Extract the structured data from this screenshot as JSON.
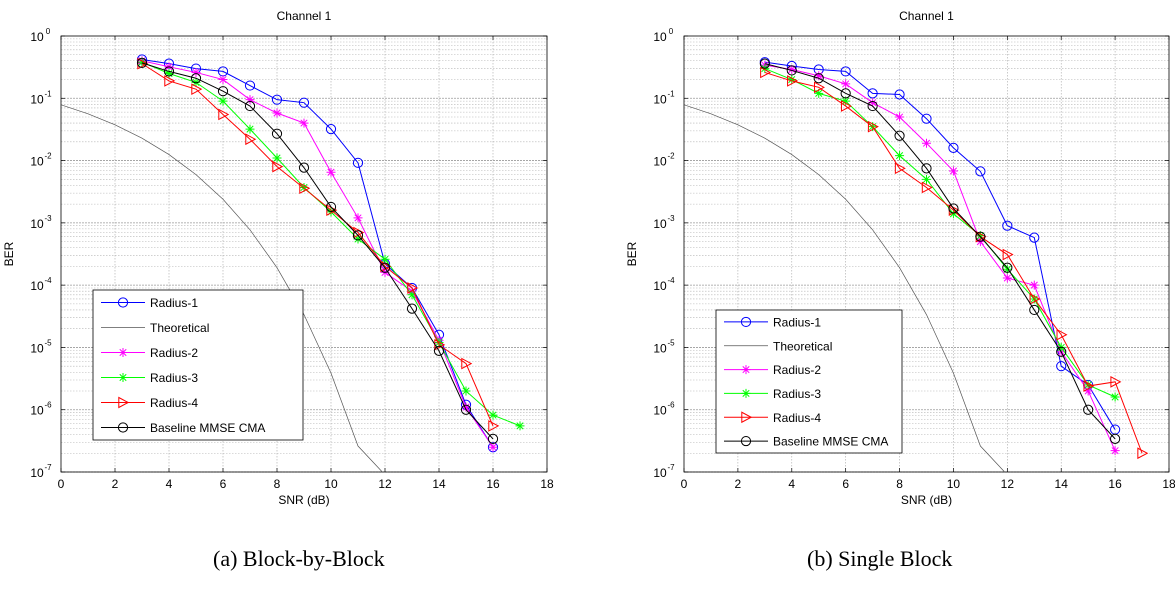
{
  "chart_data": [
    {
      "type": "line",
      "title": "Channel 1",
      "xlabel": "SNR (dB)",
      "ylabel": "BER",
      "xlim": [
        0,
        18
      ],
      "ylim": [
        1e-07,
        1
      ],
      "yscale": "log",
      "xticks": [
        "0",
        "2",
        "4",
        "6",
        "8",
        "10",
        "12",
        "14",
        "16",
        "18"
      ],
      "grid": true,
      "legend_position": "lower-left",
      "caption": "(a)   Block-by-Block",
      "series": [
        {
          "name": "Radius-1",
          "color": "#0000ff",
          "marker": "circle",
          "x": [
            3,
            4,
            5,
            6,
            7,
            8,
            9,
            10,
            11,
            12,
            13,
            14,
            15,
            16
          ],
          "y": [
            0.42,
            0.36,
            0.3,
            0.27,
            0.16,
            0.095,
            0.085,
            0.032,
            0.0092,
            0.00022,
            9e-05,
            1.6e-05,
            1.2e-06,
            2.5e-07
          ]
        },
        {
          "name": "Theoretical",
          "color": "#555555",
          "marker": "none",
          "x": [
            0,
            1,
            2,
            3,
            4,
            5,
            6,
            7,
            8,
            9,
            10,
            11,
            12
          ],
          "y": [
            0.0786,
            0.0563,
            0.0375,
            0.0229,
            0.0125,
            0.00595,
            0.00239,
            0.000773,
            0.000191,
            3.36e-05,
            3.87e-06,
            2.61e-07,
            9e-08
          ]
        },
        {
          "name": "Radius-2",
          "color": "#ff00ff",
          "marker": "star",
          "x": [
            3,
            4,
            5,
            6,
            7,
            8,
            9,
            10,
            11,
            12,
            13,
            14,
            15,
            16
          ],
          "y": [
            0.4,
            0.32,
            0.26,
            0.2,
            0.095,
            0.058,
            0.04,
            0.0065,
            0.0012,
            0.00016,
            8e-05,
            1.3e-05,
            1.1e-06,
            2.5e-07
          ]
        },
        {
          "name": "Radius-3",
          "color": "#00ff00",
          "marker": "star",
          "x": [
            3,
            4,
            5,
            6,
            7,
            8,
            9,
            10,
            11,
            12,
            13,
            14,
            15,
            16,
            17
          ],
          "y": [
            0.38,
            0.25,
            0.18,
            0.09,
            0.032,
            0.011,
            0.0037,
            0.0015,
            0.00055,
            0.00026,
            7e-05,
            1.2e-05,
            2e-06,
            8.2e-07,
            5.5e-07
          ]
        },
        {
          "name": "Radius-4",
          "color": "#ff0000",
          "marker": "triangle-right",
          "x": [
            3,
            4,
            5,
            6,
            7,
            8,
            9,
            10,
            11,
            12,
            13,
            14,
            15,
            16
          ],
          "y": [
            0.36,
            0.19,
            0.14,
            0.055,
            0.022,
            0.008,
            0.0036,
            0.0016,
            0.0007,
            0.0002,
            9e-05,
            1.1e-05,
            5.5e-06,
            5.5e-07
          ]
        },
        {
          "name": "Baseline MMSE CMA",
          "color": "#000000",
          "marker": "circle",
          "x": [
            3,
            4,
            5,
            6,
            7,
            8,
            9,
            10,
            11,
            12,
            13,
            14,
            15,
            16
          ],
          "y": [
            0.37,
            0.27,
            0.21,
            0.13,
            0.075,
            0.027,
            0.0077,
            0.0018,
            0.00063,
            0.00019,
            4.2e-05,
            8.8e-06,
            1e-06,
            3.4e-07
          ]
        }
      ]
    },
    {
      "type": "line",
      "title": "Channel 1",
      "xlabel": "SNR (dB)",
      "ylabel": "BER",
      "xlim": [
        0,
        18
      ],
      "ylim": [
        1e-07,
        1
      ],
      "yscale": "log",
      "xticks": [
        "0",
        "2",
        "4",
        "6",
        "8",
        "10",
        "12",
        "14",
        "16",
        "18"
      ],
      "grid": true,
      "legend_position": "lower-left",
      "caption": "(b) Single Block",
      "series": [
        {
          "name": "Radius-1",
          "color": "#0000ff",
          "marker": "circle",
          "x": [
            3,
            4,
            5,
            6,
            7,
            8,
            9,
            10,
            11,
            12,
            13,
            14,
            15,
            16
          ],
          "y": [
            0.38,
            0.33,
            0.29,
            0.27,
            0.12,
            0.115,
            0.047,
            0.016,
            0.0067,
            0.0009,
            0.00058,
            5e-06,
            2.5e-06,
            4.8e-07
          ]
        },
        {
          "name": "Theoretical",
          "color": "#555555",
          "marker": "none",
          "x": [
            0,
            1,
            2,
            3,
            4,
            5,
            6,
            7,
            8,
            9,
            10,
            11,
            12
          ],
          "y": [
            0.0786,
            0.0563,
            0.0375,
            0.0229,
            0.0125,
            0.00595,
            0.00239,
            0.000773,
            0.000191,
            3.36e-05,
            3.87e-06,
            2.61e-07,
            9e-08
          ]
        },
        {
          "name": "Radius-2",
          "color": "#ff00ff",
          "marker": "star",
          "x": [
            3,
            4,
            5,
            6,
            7,
            8,
            9,
            10,
            11,
            12,
            13,
            14,
            15,
            16
          ],
          "y": [
            0.34,
            0.29,
            0.23,
            0.17,
            0.085,
            0.05,
            0.019,
            0.0068,
            0.0005,
            0.00013,
            0.0001,
            8.5e-06,
            2e-06,
            2.2e-07
          ]
        },
        {
          "name": "Radius-3",
          "color": "#00ff00",
          "marker": "star",
          "x": [
            3,
            4,
            5,
            6,
            7,
            8,
            9,
            10,
            11,
            12,
            13,
            14,
            15,
            16
          ],
          "y": [
            0.3,
            0.2,
            0.12,
            0.09,
            0.035,
            0.012,
            0.005,
            0.0014,
            0.00062,
            0.00018,
            6e-05,
            1e-05,
            2.5e-06,
            1.6e-06
          ]
        },
        {
          "name": "Radius-4",
          "color": "#ff0000",
          "marker": "triangle-right",
          "x": [
            3,
            4,
            5,
            6,
            7,
            8,
            9,
            10,
            11,
            12,
            13,
            14,
            15,
            16,
            17
          ],
          "y": [
            0.26,
            0.19,
            0.15,
            0.075,
            0.035,
            0.0075,
            0.0037,
            0.0016,
            0.0006,
            0.00031,
            6e-05,
            1.6e-05,
            2.4e-06,
            2.8e-06,
            2e-07
          ]
        },
        {
          "name": "Baseline MMSE CMA",
          "color": "#000000",
          "marker": "circle",
          "x": [
            3,
            4,
            5,
            6,
            7,
            8,
            9,
            10,
            11,
            12,
            13,
            14,
            15,
            16
          ],
          "y": [
            0.36,
            0.28,
            0.21,
            0.12,
            0.075,
            0.025,
            0.0075,
            0.0017,
            0.0006,
            0.00019,
            4e-05,
            8.5e-06,
            1e-06,
            3.4e-07
          ]
        }
      ]
    }
  ]
}
